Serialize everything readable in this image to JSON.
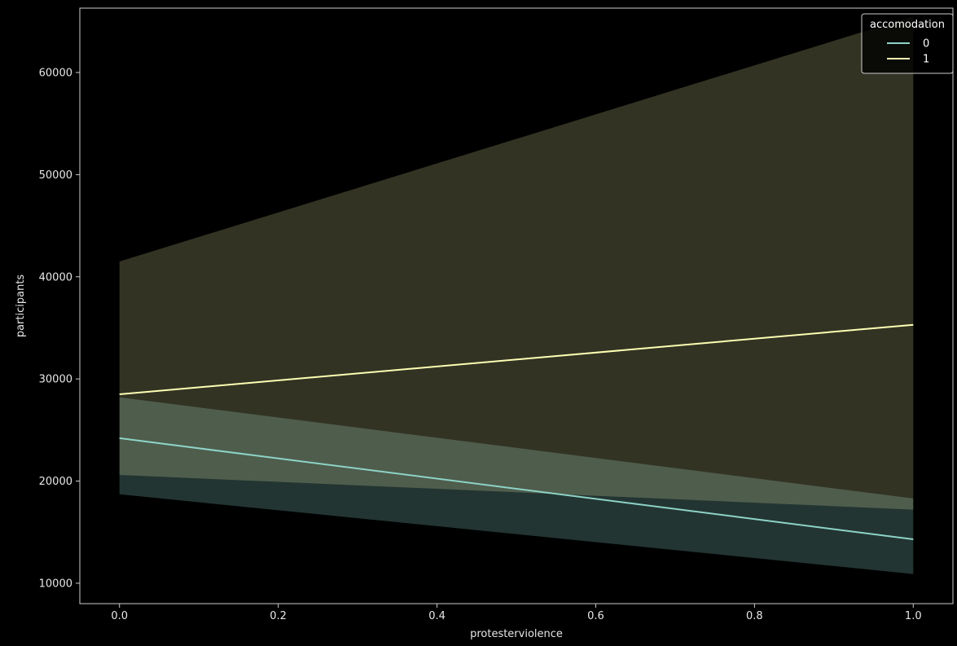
{
  "chart_data": {
    "type": "line",
    "xlabel": "protesterviolence",
    "ylabel": "participants",
    "x_ticks": [
      "0.0",
      "0.2",
      "0.4",
      "0.6",
      "0.8",
      "1.0"
    ],
    "y_ticks": [
      "10000",
      "20000",
      "30000",
      "40000",
      "50000",
      "60000"
    ],
    "xlim": [
      -0.05,
      1.05
    ],
    "ylim": [
      8000,
      66300
    ],
    "grid": false,
    "legend": {
      "title": "accomodation",
      "placement": "top-right"
    },
    "series": [
      {
        "name": "0",
        "color": "#8dd3c7",
        "x": [
          0,
          1
        ],
        "y": [
          24200,
          14300
        ],
        "ci_lower": [
          18700,
          10900
        ],
        "ci_upper": [
          28200,
          18300
        ]
      },
      {
        "name": "1",
        "color": "#feffb3",
        "x": [
          0,
          1
        ],
        "y": [
          28500,
          35300
        ],
        "ci_lower": [
          20600,
          17200
        ],
        "ci_upper": [
          41500,
          65500
        ]
      }
    ]
  }
}
